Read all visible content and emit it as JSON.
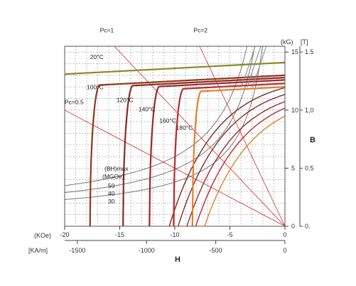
{
  "chart_data": {
    "type": "line",
    "x_axis": {
      "label": "H",
      "unit_koe": "(KOe)",
      "unit_kam": "[KA/m]",
      "range_koe": [
        -20,
        0
      ],
      "ticks_koe": [
        {
          "v": -20,
          "t": "-20"
        },
        {
          "v": -15,
          "t": "-15"
        },
        {
          "v": -10,
          "t": "-10"
        },
        {
          "v": -5,
          "t": "-5"
        },
        {
          "v": 0,
          "t": "0"
        }
      ],
      "ticks_kam": [
        {
          "v": -1500,
          "t": "-1500"
        },
        {
          "v": -1000,
          "t": "-1000"
        },
        {
          "v": -500,
          "t": "-500"
        },
        {
          "v": 0,
          "t": "0"
        }
      ]
    },
    "y_axis": {
      "label": "B",
      "unit_kg": "(kG)",
      "unit_t": "[T]",
      "range_kg": [
        0,
        15.5
      ],
      "ticks_kg": [
        {
          "v": 0,
          "t": "0"
        },
        {
          "v": 5,
          "t": "5"
        },
        {
          "v": 10,
          "t": "10"
        },
        {
          "v": 15,
          "t": "15"
        }
      ],
      "ticks_t": [
        {
          "v": 0,
          "t": "0."
        },
        {
          "v": 0.5,
          "t": "0.5"
        },
        {
          "v": 1.0,
          "t": "1,0"
        },
        {
          "v": 1.5,
          "t": "1.5"
        }
      ]
    },
    "grid": true,
    "series": [
      {
        "name": "20°C",
        "color": "#8a8a2a",
        "Br": 14.1,
        "slope": 0.05,
        "Hk": -40,
        "Hc": -41,
        "label_x": -17.7,
        "label_y": 14.4
      },
      {
        "name": "100°C",
        "color": "#8b3a1a",
        "Br": 13.0,
        "slope": 0.05,
        "Hk": -16.8,
        "Hc": -17.7,
        "label_x": -18.0,
        "label_y": 11.8
      },
      {
        "name": "120°C",
        "color": "#8b2a20",
        "Br": 12.8,
        "slope": 0.05,
        "Hk": -13.8,
        "Hc": -14.7,
        "label_x": -15.3,
        "label_y": 10.7
      },
      {
        "name": "140°C",
        "color": "#9a2a28",
        "Br": 12.6,
        "slope": 0.05,
        "Hk": -11.4,
        "Hc": -12.3,
        "label_x": -13.3,
        "label_y": 9.9
      },
      {
        "name": "160°C",
        "color": "#c0282c",
        "Br": 12.3,
        "slope": 0.05,
        "Hk": -9.2,
        "Hc": -10.1,
        "label_x": -11.4,
        "label_y": 8.9
      },
      {
        "name": "180°C",
        "color": "#e08030",
        "Br": 12.0,
        "slope": 0.05,
        "Hk": -7.6,
        "Hc": -8.4,
        "label_x": -9.9,
        "label_y": 8.3
      }
    ],
    "intrinsic_lines": [
      {
        "Br": 13.0,
        "color": "#7a2a1a"
      },
      {
        "Br": 12.6,
        "color": "#8b2a20"
      },
      {
        "Br": 12.2,
        "color": "#a02a28"
      },
      {
        "Br": 11.9,
        "color": "#c0282c"
      },
      {
        "Br": 11.5,
        "color": "#e08030"
      }
    ],
    "load_lines": [
      {
        "name": "Pc=0.5",
        "slope": 0.5,
        "label_x": -20.0,
        "label_y": 10.5,
        "color": "#d03030"
      },
      {
        "name": "Pc=1",
        "slope": 1.0,
        "label_x": -16.8,
        "label_y": 16.7,
        "color": "#d03030"
      },
      {
        "name": "Pc=2",
        "slope": 2.0,
        "label_x": -8.3,
        "label_y": 16.7,
        "color": "#d03030"
      }
    ],
    "bhmax_curves": {
      "title_1": "(BH)max",
      "title_2": "(MGOe)",
      "color": "#777777",
      "values": [
        {
          "name": "50",
          "v": 50
        },
        {
          "name": "40",
          "v": 40
        },
        {
          "name": "30",
          "v": 30
        }
      ]
    }
  }
}
